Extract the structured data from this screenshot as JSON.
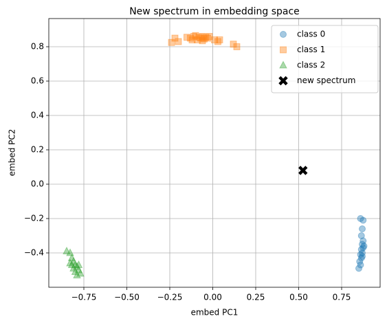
{
  "chart_data": {
    "type": "scatter",
    "title": "New spectrum in embedding space",
    "x_label": "embed PC1",
    "y_label": "embed PC2",
    "xlim": [
      -0.954,
      0.974
    ],
    "ylim": [
      -0.6,
      0.964
    ],
    "xticks": [
      {
        "value": -0.75,
        "label": "−0.75"
      },
      {
        "value": -0.5,
        "label": "−0.50"
      },
      {
        "value": -0.25,
        "label": "−0.25"
      },
      {
        "value": 0,
        "label": "0.00"
      },
      {
        "value": 0.25,
        "label": "0.25"
      },
      {
        "value": 0.5,
        "label": "0.50"
      },
      {
        "value": 0.75,
        "label": "0.75"
      }
    ],
    "yticks": [
      {
        "value": -0.4,
        "label": "−0.4"
      },
      {
        "value": -0.2,
        "label": "−0.2"
      },
      {
        "value": 0,
        "label": "0.0"
      },
      {
        "value": 0.2,
        "label": "0.2"
      },
      {
        "value": 0.4,
        "label": "0.4"
      },
      {
        "value": 0.6,
        "label": "0.6"
      },
      {
        "value": 0.8,
        "label": "0.8"
      }
    ],
    "grid": true,
    "legend": "upper right",
    "series": [
      {
        "name": "class 0",
        "color": "#1f77b4",
        "opacity": 0.4,
        "marker": "o",
        "x": [
          0.86,
          0.875,
          0.87,
          0.865,
          0.875,
          0.87,
          0.88,
          0.865,
          0.87,
          0.86,
          0.865,
          0.855,
          0.86,
          0.85,
          0.875,
          0.87
        ],
        "values": [
          -0.2,
          -0.21,
          -0.26,
          -0.3,
          -0.33,
          -0.35,
          -0.36,
          -0.38,
          -0.4,
          -0.41,
          -0.43,
          -0.45,
          -0.47,
          -0.49,
          -0.37,
          -0.42
        ]
      },
      {
        "name": "class 1",
        "color": "#ff7f0e",
        "opacity": 0.4,
        "marker": "s",
        "x": [
          -0.24,
          -0.22,
          -0.2,
          -0.15,
          -0.13,
          -0.11,
          -0.1,
          -0.09,
          -0.08,
          -0.07,
          -0.06,
          -0.05,
          -0.04,
          -0.03,
          -0.02,
          0.01,
          0.03,
          0.04,
          0.12,
          0.14,
          -0.12,
          -0.06
        ],
        "values": [
          0.825,
          0.85,
          0.83,
          0.855,
          0.85,
          0.86,
          0.865,
          0.84,
          0.855,
          0.85,
          0.86,
          0.845,
          0.855,
          0.85,
          0.86,
          0.84,
          0.83,
          0.84,
          0.815,
          0.8,
          0.84,
          0.835
        ]
      },
      {
        "name": "class 2",
        "color": "#2ca02c",
        "opacity": 0.4,
        "marker": "^",
        "x": [
          -0.85,
          -0.83,
          -0.82,
          -0.83,
          -0.81,
          -0.8,
          -0.81,
          -0.79,
          -0.8,
          -0.78,
          -0.79,
          -0.77,
          -0.78,
          -0.82
        ],
        "values": [
          -0.39,
          -0.4,
          -0.43,
          -0.46,
          -0.45,
          -0.47,
          -0.49,
          -0.48,
          -0.51,
          -0.5,
          -0.53,
          -0.52,
          -0.47,
          -0.47
        ]
      },
      {
        "name": "new spectrum",
        "color": "#000000",
        "opacity": 1,
        "marker": "X",
        "x": [
          0.525
        ],
        "values": [
          0.08
        ]
      }
    ]
  }
}
